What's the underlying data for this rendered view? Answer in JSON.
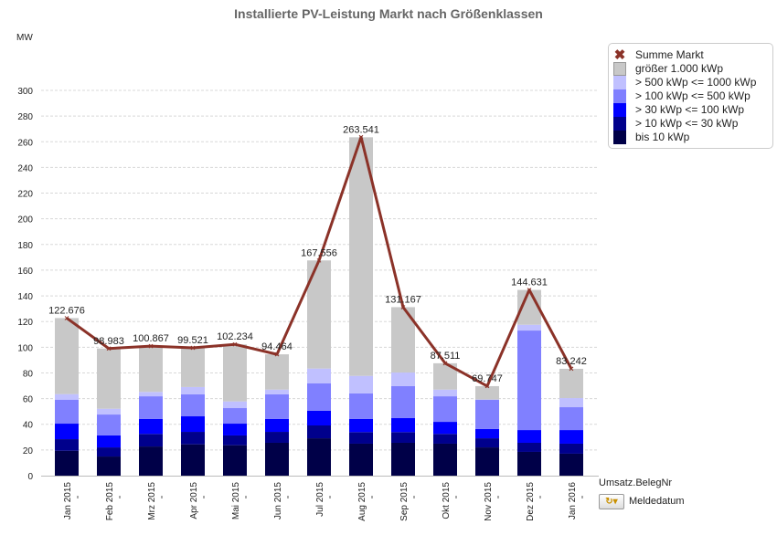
{
  "chart_data": {
    "type": "bar",
    "stacked": true,
    "title": "Installierte PV-Leistung Markt nach Größenklassen",
    "ylabel": "MW",
    "ylim": [
      0,
      300
    ],
    "yticks": [
      0,
      20,
      40,
      60,
      80,
      100,
      120,
      140,
      160,
      180,
      200,
      220,
      240,
      260,
      280,
      300
    ],
    "grid": true,
    "legend_position": "top-right",
    "categories": [
      "Jan 2015",
      "Feb 2015",
      "Mrz 2015",
      "Apr 2015",
      "Mai 2015",
      "Jun 2015",
      "Jul 2015",
      "Aug 2015",
      "Sep 2015",
      "Okt 2015",
      "Nov 2015",
      "Dez 2015",
      "Jan 2016"
    ],
    "series": [
      {
        "name": "bis 10 kWp",
        "color": "#000048",
        "values": [
          19.4,
          14.9,
          22.7,
          24.4,
          23.7,
          25.6,
          29.1,
          24.9,
          25.6,
          24.9,
          22.0,
          18.5,
          17.1
        ]
      },
      {
        "name": "> 10 kWp <= 30 kWp",
        "color": "#00008c",
        "values": [
          9.0,
          7.1,
          9.8,
          9.7,
          7.6,
          8.5,
          10.0,
          9.0,
          8.3,
          7.6,
          7.1,
          7.1,
          7.8
        ]
      },
      {
        "name": "> 30 kWp <= 100 kWp",
        "color": "#0000ff",
        "values": [
          12.1,
          9.3,
          11.6,
          12.1,
          9.2,
          10.0,
          11.4,
          10.2,
          10.9,
          9.4,
          7.2,
          9.9,
          10.6
        ]
      },
      {
        "name": "> 100 kWp <= 500 kWp",
        "color": "#8080ff",
        "values": [
          18.7,
          16.3,
          17.7,
          17.1,
          12.1,
          19.2,
          21.3,
          19.9,
          24.9,
          19.9,
          22.7,
          77.5,
          17.8
        ]
      },
      {
        "name": "> 500 kWp <= 1000 kWp",
        "color": "#c0c0ff",
        "values": [
          4.3,
          4.5,
          3.4,
          5.7,
          5.2,
          3.7,
          11.6,
          13.7,
          10.6,
          5.2,
          0.3,
          4.5,
          7.1
        ]
      },
      {
        "name": "größer 1.000 kWp",
        "color": "#c8c8c8",
        "values": [
          59.2,
          46.9,
          35.7,
          30.5,
          44.4,
          27.5,
          84.2,
          185.8,
          50.9,
          20.5,
          10.4,
          27.1,
          22.8
        ]
      }
    ],
    "line": {
      "name": "Summe Markt",
      "color": "#8b3228",
      "values": [
        122.676,
        98.983,
        100.867,
        99.521,
        102.234,
        94.464,
        167.556,
        263.541,
        131.167,
        87.511,
        69.747,
        144.631,
        83.242
      ],
      "labels": [
        "122.676",
        "98.983",
        "100.867",
        "99.521",
        "102.234",
        "94.464",
        "167.556",
        "263.541",
        "131.167",
        "87.511",
        "69.747",
        "144.631",
        "83.242"
      ]
    }
  },
  "dimensions": {
    "label": "Umsatz.BelegNr",
    "group_label": "Meldedatum",
    "dropdown_icon": "cycle-dropdown-icon"
  }
}
